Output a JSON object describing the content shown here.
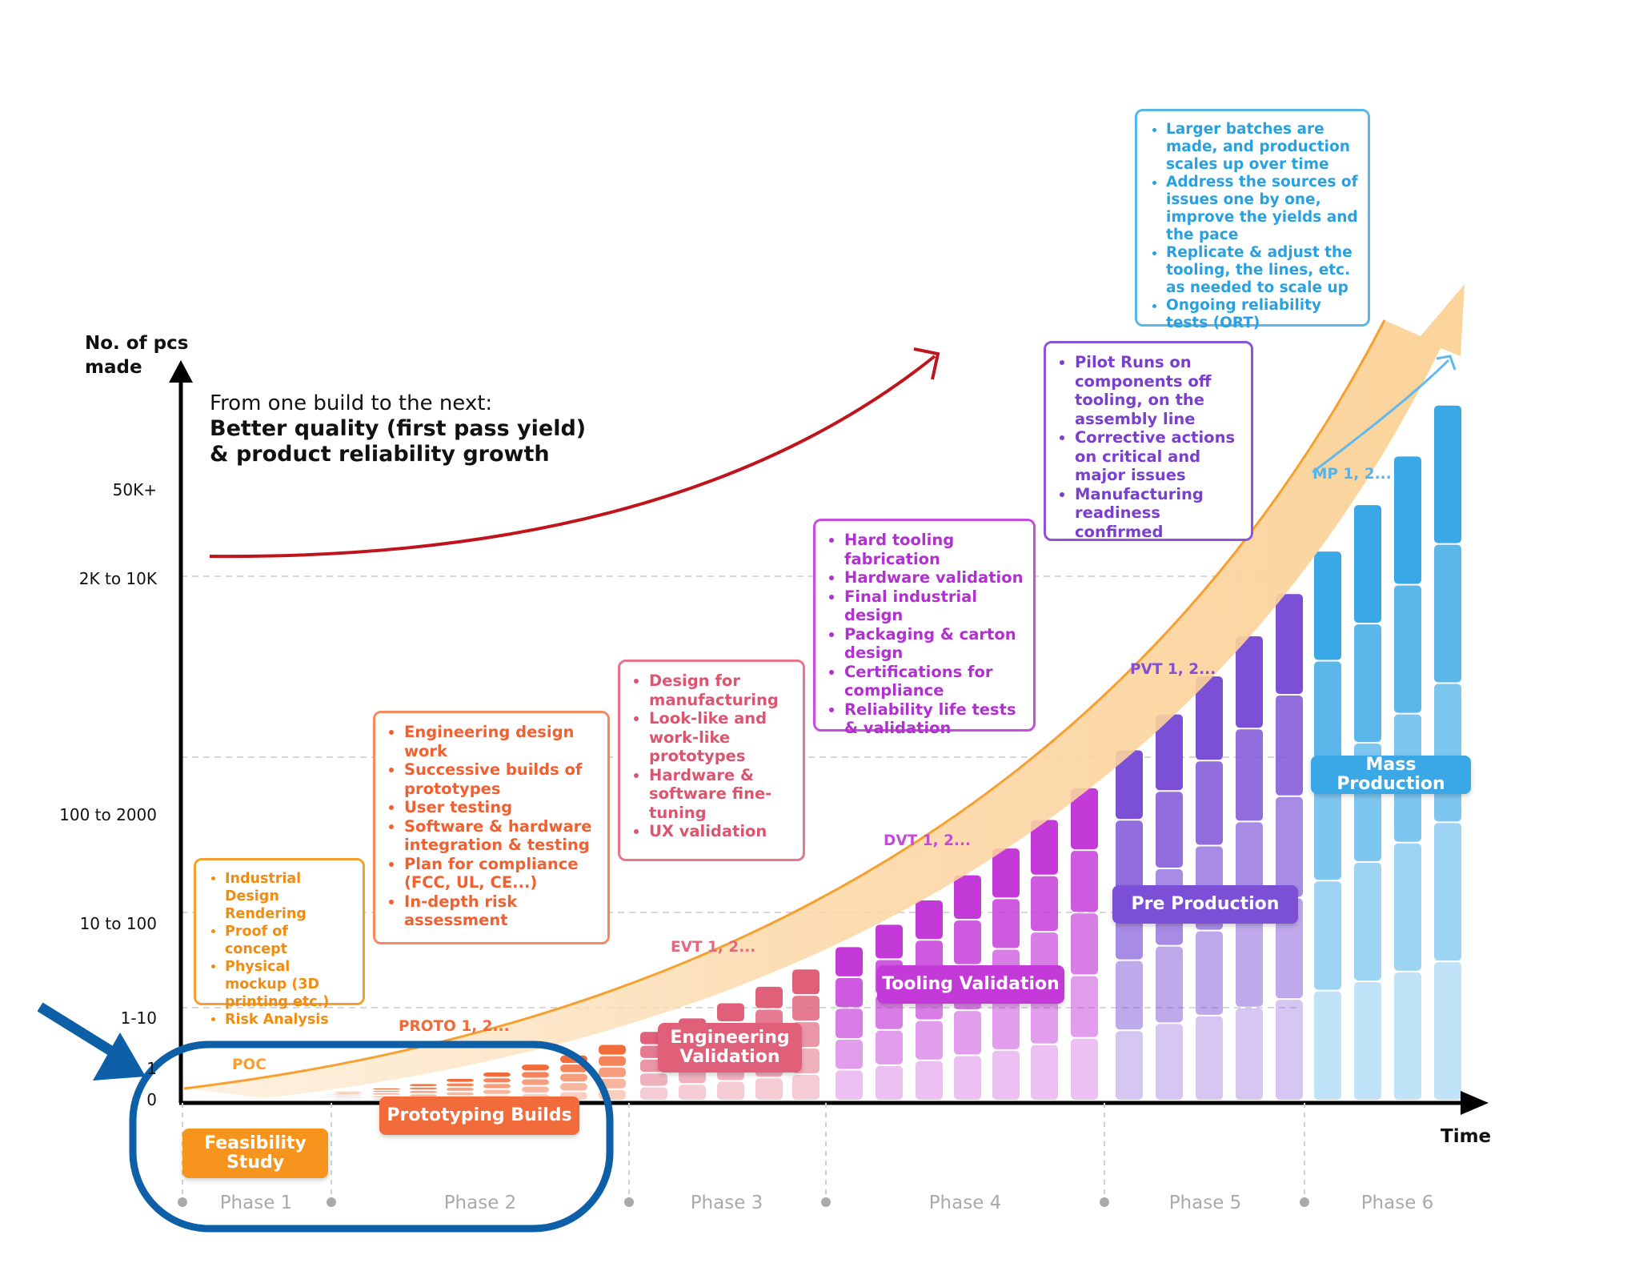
{
  "y_axis": {
    "title_line1": "No. of pcs",
    "title_line2": "made",
    "ticks": [
      "50K+",
      "2K to 10K",
      "100 to 2000",
      "10 to 100",
      "1-10",
      "1",
      "0"
    ]
  },
  "x_axis": {
    "title": "Time"
  },
  "note": {
    "intro": "From one build to the next:",
    "bold_line1": "Better quality (first pass yield)",
    "bold_line2": "& product reliability growth"
  },
  "phases": [
    "Phase 1",
    "Phase 2",
    "Phase 3",
    "Phase 4",
    "Phase 5",
    "Phase 6"
  ],
  "builds": {
    "poc": "POC",
    "proto": "PROTO 1, 2...",
    "evt": "EVT 1, 2...",
    "dvt": "DVT 1, 2...",
    "pvt": "PVT 1, 2...",
    "mp": "MP 1, 2..."
  },
  "stages": {
    "feasibility": "Feasibility Study",
    "prototyping": "Prototyping Builds",
    "engineering": "Engineering Validation",
    "tooling": "Tooling Validation",
    "pre_production": "Pre Production",
    "mass_production": "Mass Production"
  },
  "boxes": {
    "feasibility": [
      "Industrial Design Rendering",
      "Proof of concept",
      "Physical mockup (3D printing etc.)",
      "Risk Analysis"
    ],
    "prototyping": [
      "Engineering design work",
      "Successive builds of prototypes",
      "User testing",
      "Software & hardware integration & testing",
      "Plan for compliance (FCC, UL, CE...)",
      "In-depth risk assessment"
    ],
    "engineering": [
      "Design for manufacturing",
      "Look-like and work-like prototypes",
      "Hardware & software fine-tuning",
      "UX validation"
    ],
    "tooling": [
      "Hard tooling fabrication",
      "Hardware validation",
      "Final industrial design",
      "Packaging & carton design",
      "Certifications for compliance",
      "Reliability life tests & validation"
    ],
    "pre_production": [
      "Pilot Runs on components off tooling, on the assembly line",
      "Corrective actions on critical and major issues",
      "Manufacturing readiness confirmed"
    ],
    "mass_production": [
      "Larger batches are made, and production scales up over time",
      "Address the sources of issues one by one, improve the yields and the pace",
      "Replicate & adjust the tooling, the lines, etc. as needed to scale up",
      "Ongoing reliability tests (ORT)"
    ]
  },
  "colors": {
    "orange": "#f7941d",
    "red_orange": "#f26b3a",
    "pink": "#e0607a",
    "magenta": "#c43ad8",
    "violet": "#7b4fd6",
    "blue": "#3aa8e6",
    "highlight": "#0d5fa8",
    "growth_arrow": "#c0141c"
  }
}
